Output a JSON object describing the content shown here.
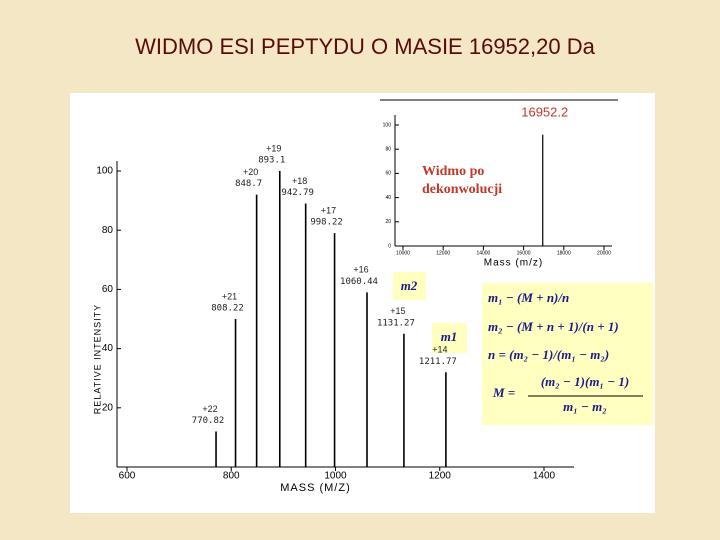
{
  "title": "WIDMO ESI PEPTYDU O MASIE 16952,20 Da",
  "chart_data": [
    {
      "type": "stem",
      "xlabel": "MASS (M/Z)",
      "ylabel": "RELATIVE INTENSITY",
      "color": "#000000",
      "x": [
        770.82,
        808.22,
        848.7,
        893.1,
        942.79,
        998.22,
        1060.44,
        1131.27,
        1211.77
      ],
      "values": [
        12,
        50,
        92,
        100,
        89,
        79,
        59,
        45,
        32
      ],
      "value_labels": [
        "+22",
        "+21",
        "+20",
        "+19",
        "+18",
        "+17",
        "+16",
        "+15",
        "+14"
      ],
      "xlim": [
        600,
        1400
      ],
      "xticks": [
        600,
        800,
        1000,
        1200,
        1400
      ],
      "ylim": [
        0,
        100
      ],
      "yticks": [
        20,
        40,
        60,
        80,
        100
      ]
    },
    {
      "type": "stem",
      "xlabel": "Mass (m/z)",
      "color": "#000000",
      "annotation": [
        "Widmo po",
        "dekonwolucji"
      ],
      "x": [
        16952.2
      ],
      "values": [
        92
      ],
      "label_color": "#c0392b",
      "xlim": [
        10000,
        20000
      ],
      "xticks": [
        10000,
        12000,
        14000,
        16000,
        18000,
        20000
      ],
      "ylim": [
        0,
        100
      ],
      "yticks": [
        0,
        20,
        40,
        60,
        80,
        100
      ]
    }
  ],
  "callouts": [
    "m2",
    "m1"
  ],
  "formulas": [
    "m₁ − (M + n)/n",
    "m₂ − (M + n + 1)/(n + 1)",
    "n = (m₂ − 1)/(m₁ − m₂)",
    "M =",
    "(m₂ − 1)(m₁ − 1)",
    "m₁ − m₂"
  ]
}
